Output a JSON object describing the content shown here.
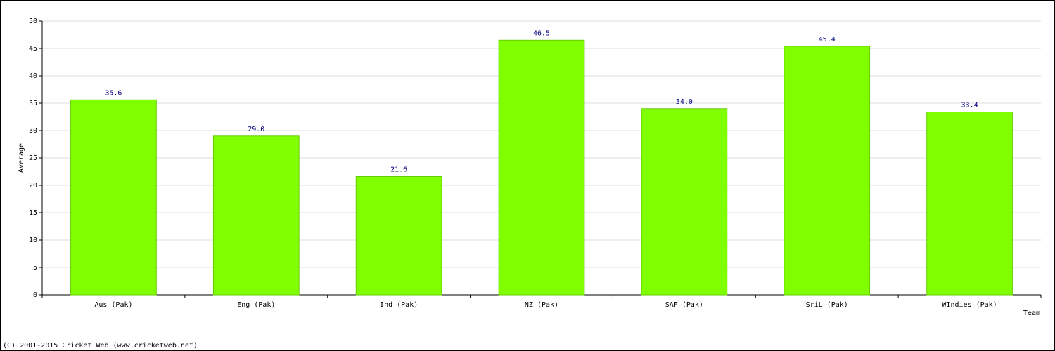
{
  "chart_data": {
    "type": "bar",
    "x_label": "Team",
    "y_label": "Average",
    "footer": "(C) 2001-2015 Cricket Web (www.cricketweb.net)",
    "categories": [
      "Aus (Pak)",
      "Eng (Pak)",
      "Ind (Pak)",
      "NZ (Pak)",
      "SAF (Pak)",
      "SriL (Pak)",
      "WIndies (Pak)"
    ],
    "values": [
      35.6,
      29.0,
      21.6,
      46.5,
      34.0,
      45.4,
      33.4
    ],
    "value_labels": [
      "35.6",
      "29.0",
      "21.6",
      "46.5",
      "34.0",
      "45.4",
      "33.4"
    ],
    "color": "#80ff00",
    "ylim": [
      0,
      50
    ],
    "yticks": [
      0,
      5,
      10,
      15,
      20,
      25,
      30,
      35,
      40,
      45,
      50
    ],
    "grid": true
  }
}
